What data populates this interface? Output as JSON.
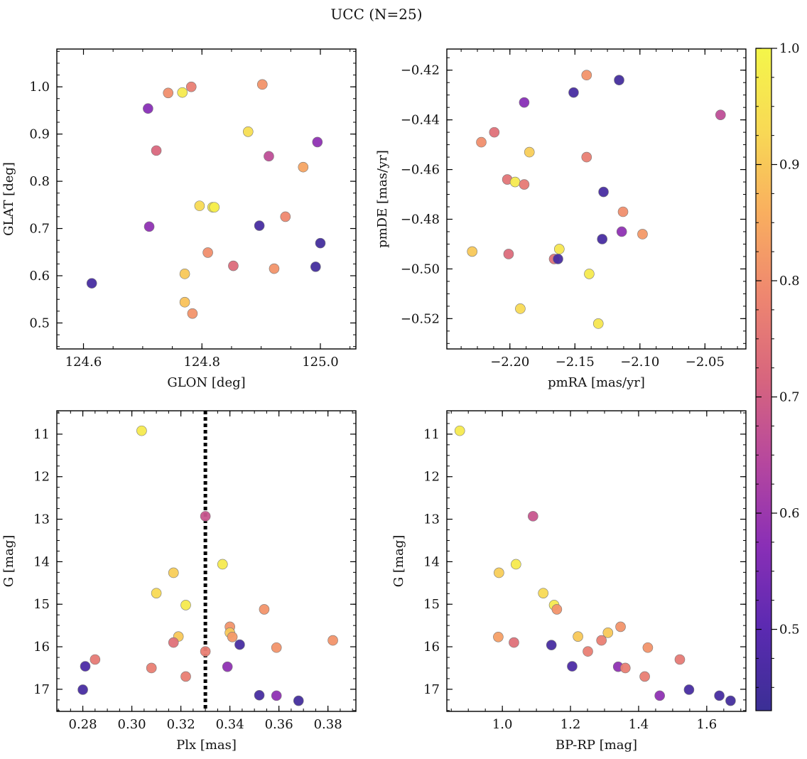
{
  "figure": {
    "title": "UCC (N=25)"
  },
  "colorbar": {
    "range": [
      0.43,
      1.0
    ],
    "ticks": [
      0.5,
      0.6,
      0.7,
      0.8,
      0.9,
      1.0
    ],
    "tick_labels": [
      "0.5",
      "0.6",
      "0.7",
      "0.8",
      "0.9",
      "1.0"
    ],
    "colormap": "plasma (truncated)",
    "colors": [
      "#3b2f95",
      "#5b2ab1",
      "#8a2fb6",
      "#b6479e",
      "#d7657e",
      "#ee8670",
      "#f9ae5f",
      "#f8d955",
      "#f4f64a"
    ]
  },
  "chart_data": [
    {
      "type": "scatter",
      "title": "",
      "xlabel": "GLON [deg]",
      "ylabel": "GLAT [deg]",
      "xlim": [
        124.555,
        125.06
      ],
      "ylim": [
        0.445,
        1.08
      ],
      "x_ticks": [
        124.6,
        124.8,
        125.0
      ],
      "x_tick_labels": [
        "124.6",
        "124.8",
        "125.0"
      ],
      "y_ticks": [
        0.5,
        0.6,
        0.7,
        0.8,
        0.9,
        1.0
      ],
      "y_tick_labels": [
        "0.5",
        "0.6",
        "0.7",
        "0.8",
        "0.9",
        "1.0"
      ],
      "grid": false,
      "points": [
        {
          "x": 124.614,
          "y": 0.584,
          "c": 0.46
        },
        {
          "x": 124.709,
          "y": 0.954,
          "c": 0.57
        },
        {
          "x": 124.711,
          "y": 0.704,
          "c": 0.58
        },
        {
          "x": 124.723,
          "y": 0.865,
          "c": 0.72
        },
        {
          "x": 124.743,
          "y": 0.987,
          "c": 0.8
        },
        {
          "x": 124.767,
          "y": 0.988,
          "c": 0.97
        },
        {
          "x": 124.771,
          "y": 0.604,
          "c": 0.9
        },
        {
          "x": 124.771,
          "y": 0.544,
          "c": 0.89
        },
        {
          "x": 124.782,
          "y": 1.0,
          "c": 0.77
        },
        {
          "x": 124.784,
          "y": 0.52,
          "c": 0.81
        },
        {
          "x": 124.796,
          "y": 0.748,
          "c": 0.93
        },
        {
          "x": 124.81,
          "y": 0.649,
          "c": 0.8
        },
        {
          "x": 124.818,
          "y": 0.745,
          "c": 0.97
        },
        {
          "x": 124.821,
          "y": 0.745,
          "c": 0.98
        },
        {
          "x": 124.853,
          "y": 0.621,
          "c": 0.73
        },
        {
          "x": 124.878,
          "y": 0.905,
          "c": 0.94
        },
        {
          "x": 124.897,
          "y": 0.706,
          "c": 0.46
        },
        {
          "x": 124.902,
          "y": 1.005,
          "c": 0.81
        },
        {
          "x": 124.913,
          "y": 0.853,
          "c": 0.66
        },
        {
          "x": 124.922,
          "y": 0.615,
          "c": 0.81
        },
        {
          "x": 124.941,
          "y": 0.725,
          "c": 0.79
        },
        {
          "x": 124.971,
          "y": 0.83,
          "c": 0.84
        },
        {
          "x": 124.992,
          "y": 0.619,
          "c": 0.45
        },
        {
          "x": 124.995,
          "y": 0.883,
          "c": 0.58
        },
        {
          "x": 125.0,
          "y": 0.669,
          "c": 0.45
        }
      ]
    },
    {
      "type": "scatter",
      "title": "",
      "xlabel": "pmRA [mas/yr]",
      "ylabel": "pmDE [mas/yr]",
      "xlim": [
        -2.2485,
        -2.0185
      ],
      "ylim": [
        -0.5322,
        -0.4115
      ],
      "x_ticks": [
        -2.2,
        -2.15,
        -2.1,
        -2.05
      ],
      "x_tick_labels": [
        "−2.20",
        "−2.15",
        "−2.10",
        "−2.05"
      ],
      "y_ticks": [
        -0.52,
        -0.5,
        -0.48,
        -0.46,
        -0.44,
        -0.42
      ],
      "y_tick_labels": [
        "−0.52",
        "−0.50",
        "−0.48",
        "−0.46",
        "−0.44",
        "−0.42"
      ],
      "grid": false,
      "points": [
        {
          "x": -2.229,
          "y": -0.493,
          "c": 0.9
        },
        {
          "x": -2.222,
          "y": -0.449,
          "c": 0.8
        },
        {
          "x": -2.212,
          "y": -0.445,
          "c": 0.74
        },
        {
          "x": -2.202,
          "y": -0.464,
          "c": 0.75
        },
        {
          "x": -2.201,
          "y": -0.494,
          "c": 0.73
        },
        {
          "x": -2.196,
          "y": -0.465,
          "c": 0.97
        },
        {
          "x": -2.189,
          "y": -0.433,
          "c": 0.57
        },
        {
          "x": -2.189,
          "y": -0.466,
          "c": 0.76
        },
        {
          "x": -2.185,
          "y": -0.453,
          "c": 0.91
        },
        {
          "x": -2.192,
          "y": -0.516,
          "c": 0.93
        },
        {
          "x": -2.166,
          "y": -0.496,
          "c": 0.74
        },
        {
          "x": -2.163,
          "y": -0.496,
          "c": 0.46
        },
        {
          "x": -2.162,
          "y": -0.492,
          "c": 0.96
        },
        {
          "x": -2.151,
          "y": -0.429,
          "c": 0.46
        },
        {
          "x": -2.141,
          "y": -0.422,
          "c": 0.81
        },
        {
          "x": -2.141,
          "y": -0.455,
          "c": 0.77
        },
        {
          "x": -2.139,
          "y": -0.502,
          "c": 0.97
        },
        {
          "x": -2.132,
          "y": -0.522,
          "c": 0.96
        },
        {
          "x": -2.129,
          "y": -0.488,
          "c": 0.46
        },
        {
          "x": -2.128,
          "y": -0.469,
          "c": 0.46
        },
        {
          "x": -2.116,
          "y": -0.424,
          "c": 0.45
        },
        {
          "x": -2.114,
          "y": -0.485,
          "c": 0.58
        },
        {
          "x": -2.113,
          "y": -0.477,
          "c": 0.8
        },
        {
          "x": -2.098,
          "y": -0.486,
          "c": 0.82
        },
        {
          "x": -2.038,
          "y": -0.438,
          "c": 0.66
        }
      ]
    },
    {
      "type": "scatter",
      "title": "",
      "xlabel": "Plx [mas]",
      "ylabel": "G [mag]",
      "xlim": [
        0.2694,
        0.3914
      ],
      "ylim": [
        17.52,
        10.45
      ],
      "y_inverted": true,
      "x_ticks": [
        0.28,
        0.3,
        0.32,
        0.34,
        0.36,
        0.38
      ],
      "x_tick_labels": [
        "0.28",
        "0.30",
        "0.32",
        "0.34",
        "0.36",
        "0.38"
      ],
      "y_ticks": [
        11,
        12,
        13,
        14,
        15,
        16,
        17
      ],
      "y_tick_labels": [
        "11",
        "12",
        "13",
        "14",
        "15",
        "16",
        "17"
      ],
      "grid": false,
      "vline": {
        "x": 0.33,
        "style": "dotted",
        "color": "#000000"
      },
      "points": [
        {
          "x": 0.304,
          "y": 10.92,
          "c": 0.97
        },
        {
          "x": 0.33,
          "y": 12.93,
          "c": 0.68
        },
        {
          "x": 0.337,
          "y": 14.06,
          "c": 0.97
        },
        {
          "x": 0.317,
          "y": 14.26,
          "c": 0.91
        },
        {
          "x": 0.31,
          "y": 14.74,
          "c": 0.93
        },
        {
          "x": 0.322,
          "y": 15.02,
          "c": 0.97
        },
        {
          "x": 0.354,
          "y": 15.12,
          "c": 0.81
        },
        {
          "x": 0.34,
          "y": 15.53,
          "c": 0.81
        },
        {
          "x": 0.34,
          "y": 15.67,
          "c": 0.9
        },
        {
          "x": 0.319,
          "y": 15.76,
          "c": 0.9
        },
        {
          "x": 0.341,
          "y": 15.77,
          "c": 0.82
        },
        {
          "x": 0.382,
          "y": 15.85,
          "c": 0.81
        },
        {
          "x": 0.317,
          "y": 15.9,
          "c": 0.74
        },
        {
          "x": 0.344,
          "y": 15.95,
          "c": 0.46
        },
        {
          "x": 0.359,
          "y": 16.02,
          "c": 0.81
        },
        {
          "x": 0.33,
          "y": 16.11,
          "c": 0.77
        },
        {
          "x": 0.285,
          "y": 16.3,
          "c": 0.76
        },
        {
          "x": 0.281,
          "y": 16.46,
          "c": 0.47
        },
        {
          "x": 0.308,
          "y": 16.5,
          "c": 0.77
        },
        {
          "x": 0.339,
          "y": 16.47,
          "c": 0.58
        },
        {
          "x": 0.322,
          "y": 16.7,
          "c": 0.77
        },
        {
          "x": 0.28,
          "y": 17.01,
          "c": 0.46
        },
        {
          "x": 0.352,
          "y": 17.14,
          "c": 0.46
        },
        {
          "x": 0.359,
          "y": 17.15,
          "c": 0.58
        },
        {
          "x": 0.368,
          "y": 17.27,
          "c": 0.45
        }
      ]
    },
    {
      "type": "scatter",
      "title": "",
      "xlabel": "BP-RP [mag]",
      "ylabel": "G [mag]",
      "xlim": [
        0.837,
        1.715
      ],
      "ylim": [
        17.52,
        10.45
      ],
      "y_inverted": true,
      "x_ticks": [
        1.0,
        1.2,
        1.4,
        1.6
      ],
      "x_tick_labels": [
        "1.0",
        "1.2",
        "1.4",
        "1.6"
      ],
      "y_ticks": [
        11,
        12,
        13,
        14,
        15,
        16,
        17
      ],
      "y_tick_labels": [
        "11",
        "12",
        "13",
        "14",
        "15",
        "16",
        "17"
      ],
      "grid": false,
      "points": [
        {
          "x": 0.875,
          "y": 10.92,
          "c": 0.97
        },
        {
          "x": 1.09,
          "y": 12.93,
          "c": 0.68
        },
        {
          "x": 1.04,
          "y": 14.06,
          "c": 0.97
        },
        {
          "x": 0.99,
          "y": 14.26,
          "c": 0.91
        },
        {
          "x": 1.12,
          "y": 14.74,
          "c": 0.93
        },
        {
          "x": 1.152,
          "y": 15.02,
          "c": 0.97
        },
        {
          "x": 1.16,
          "y": 15.12,
          "c": 0.81
        },
        {
          "x": 1.347,
          "y": 15.53,
          "c": 0.81
        },
        {
          "x": 1.31,
          "y": 15.67,
          "c": 0.9
        },
        {
          "x": 0.988,
          "y": 15.77,
          "c": 0.83
        },
        {
          "x": 1.222,
          "y": 15.76,
          "c": 0.9
        },
        {
          "x": 1.291,
          "y": 15.85,
          "c": 0.77
        },
        {
          "x": 1.034,
          "y": 15.9,
          "c": 0.74
        },
        {
          "x": 1.144,
          "y": 15.96,
          "c": 0.46
        },
        {
          "x": 1.427,
          "y": 16.02,
          "c": 0.81
        },
        {
          "x": 1.251,
          "y": 16.11,
          "c": 0.77
        },
        {
          "x": 1.521,
          "y": 16.3,
          "c": 0.76
        },
        {
          "x": 1.205,
          "y": 16.46,
          "c": 0.47
        },
        {
          "x": 1.34,
          "y": 16.47,
          "c": 0.58
        },
        {
          "x": 1.361,
          "y": 16.5,
          "c": 0.77
        },
        {
          "x": 1.418,
          "y": 16.7,
          "c": 0.77
        },
        {
          "x": 1.548,
          "y": 17.01,
          "c": 0.46
        },
        {
          "x": 1.462,
          "y": 17.15,
          "c": 0.58
        },
        {
          "x": 1.637,
          "y": 17.15,
          "c": 0.46
        },
        {
          "x": 1.67,
          "y": 17.27,
          "c": 0.45
        }
      ]
    }
  ]
}
